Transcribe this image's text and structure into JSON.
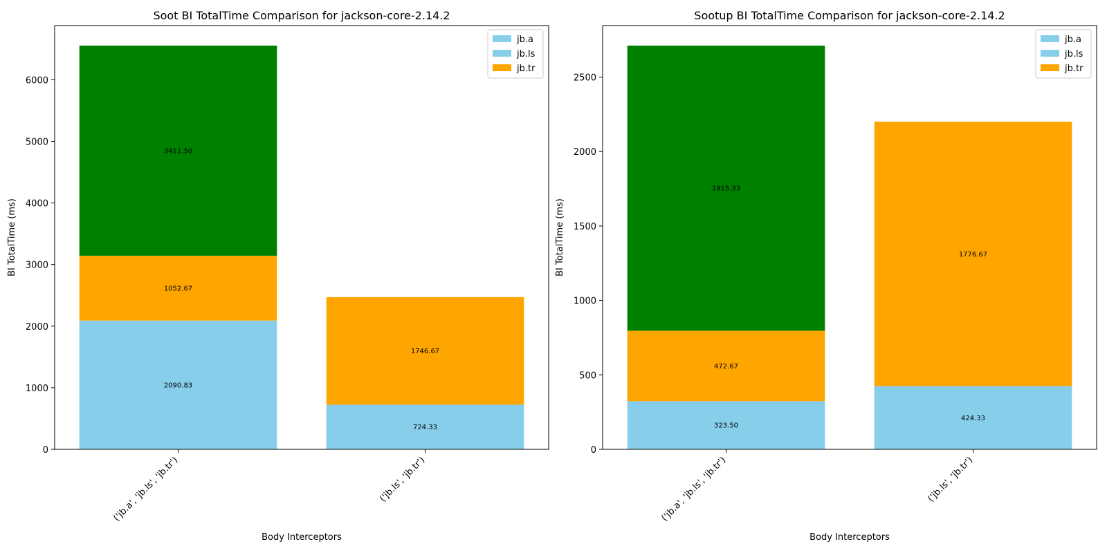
{
  "chart_data": [
    {
      "type": "bar",
      "stacked": true,
      "title": "Soot BI TotalTime Comparison for jackson-core-2.14.2",
      "xlabel": "Body Interceptors",
      "ylabel": "BI TotalTime (ms)",
      "ylim": [
        0,
        6880
      ],
      "yticks": [
        0,
        1000,
        2000,
        3000,
        4000,
        5000,
        6000
      ],
      "grid": false,
      "legend_position": "top-right",
      "legend": [
        {
          "label": "jb.a",
          "color": "#87CEEB"
        },
        {
          "label": "jb.ls",
          "color": "#87CEEB"
        },
        {
          "label": "jb.tr",
          "color": "#FFA500"
        }
      ],
      "categories": [
        "('jb.a', 'jb.ls', 'jb.tr')",
        "('jb.ls', 'jb.tr')"
      ],
      "bars": [
        {
          "segments": [
            {
              "value": 2090.83,
              "label": "2090.83",
              "color": "#87CEEB"
            },
            {
              "value": 1052.67,
              "label": "1052.67",
              "color": "#FFA500"
            },
            {
              "value": 3411.5,
              "label": "3411.50",
              "color": "#008000"
            }
          ]
        },
        {
          "segments": [
            {
              "value": 724.33,
              "label": "724.33",
              "color": "#87CEEB"
            },
            {
              "value": 1746.67,
              "label": "1746.67",
              "color": "#FFA500"
            }
          ]
        }
      ]
    },
    {
      "type": "bar",
      "stacked": true,
      "title": "Sootup BI TotalTime Comparison for jackson-core-2.14.2",
      "xlabel": "Body Interceptors",
      "ylabel": "BI TotalTime (ms)",
      "ylim": [
        0,
        2846
      ],
      "yticks": [
        0,
        500,
        1000,
        1500,
        2000,
        2500
      ],
      "grid": false,
      "legend_position": "top-right",
      "legend": [
        {
          "label": "jb.a",
          "color": "#87CEEB"
        },
        {
          "label": "jb.ls",
          "color": "#87CEEB"
        },
        {
          "label": "jb.tr",
          "color": "#FFA500"
        }
      ],
      "categories": [
        "('jb.a', 'jb.ls', 'jb.tr')",
        "('jb.ls', 'jb.tr')"
      ],
      "bars": [
        {
          "segments": [
            {
              "value": 323.5,
              "label": "323.50",
              "color": "#87CEEB"
            },
            {
              "value": 472.67,
              "label": "472.67",
              "color": "#FFA500"
            },
            {
              "value": 1915.33,
              "label": "1915.33",
              "color": "#008000"
            }
          ]
        },
        {
          "segments": [
            {
              "value": 424.33,
              "label": "424.33",
              "color": "#87CEEB"
            },
            {
              "value": 1776.67,
              "label": "1776.67",
              "color": "#FFA500"
            }
          ]
        }
      ]
    }
  ]
}
